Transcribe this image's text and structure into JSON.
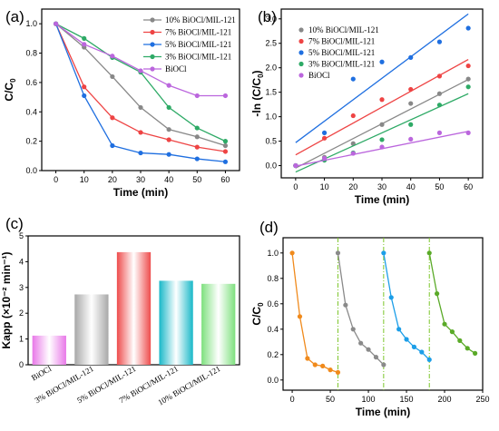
{
  "chart_data": [
    {
      "panel": "(a)",
      "type": "line",
      "xlabel": "Time (min)",
      "ylabel": "C/C0",
      "xlim": [
        -5,
        65
      ],
      "ylim": [
        0,
        1.1
      ],
      "xticks": [
        0,
        10,
        20,
        30,
        40,
        50,
        60
      ],
      "yticks": [
        0.0,
        0.2,
        0.4,
        0.6,
        0.8,
        1.0
      ],
      "ytick_labels": [
        "0.0",
        "0.2",
        "0.4",
        "0.6",
        "0.8",
        "1.0"
      ],
      "legend_position": "top-right",
      "x": [
        0,
        10,
        20,
        30,
        40,
        50,
        60
      ],
      "series": [
        {
          "name": "10% BiOCl/MIL-121",
          "color": "#888888",
          "values": [
            1.0,
            0.84,
            0.64,
            0.43,
            0.28,
            0.23,
            0.17
          ]
        },
        {
          "name": "7%  BiOCl/MIL-121",
          "color": "#ee4444",
          "values": [
            1.0,
            0.57,
            0.36,
            0.26,
            0.21,
            0.16,
            0.13
          ]
        },
        {
          "name": "5%  BiOCl/MIL-121",
          "color": "#1f6fe0",
          "values": [
            1.0,
            0.51,
            0.17,
            0.12,
            0.11,
            0.08,
            0.06
          ]
        },
        {
          "name": "3%  BiOCl/MIL-121",
          "color": "#2eaa66",
          "values": [
            1.0,
            0.9,
            0.77,
            0.67,
            0.43,
            0.29,
            0.2
          ]
        },
        {
          "name": "BiOCl",
          "color": "#bb66dd",
          "values": [
            1.0,
            0.86,
            0.78,
            0.68,
            0.58,
            0.51,
            0.51
          ]
        }
      ]
    },
    {
      "panel": "(b)",
      "type": "scatter",
      "xlabel": "Time (min)",
      "ylabel": "-ln (C/C0)",
      "xlim": [
        -5,
        65
      ],
      "ylim": [
        -0.25,
        3.2
      ],
      "xticks": [
        0,
        10,
        20,
        30,
        40,
        50,
        60
      ],
      "yticks": [
        0.0,
        0.5,
        1.0,
        1.5,
        2.0,
        2.5,
        3.0
      ],
      "ytick_labels": [
        "0.0",
        "0.5",
        "1.0",
        "1.5",
        "2.0",
        "2.5",
        "3.0"
      ],
      "legend_position": "top-left",
      "x": [
        0,
        10,
        20,
        30,
        40,
        50,
        60
      ],
      "series": [
        {
          "name": "10% BiOCl/MIL-121",
          "color": "#888888",
          "values": [
            0,
            0.17,
            0.45,
            0.84,
            1.27,
            1.47,
            1.77
          ],
          "fit": [
            -0.05,
            1.76
          ]
        },
        {
          "name": "7%  BiOCl/MIL-121",
          "color": "#ee4444",
          "values": [
            0,
            0.56,
            1.02,
            1.35,
            1.56,
            1.83,
            2.04
          ],
          "fit": [
            0.22,
            2.17
          ]
        },
        {
          "name": "5%  BiOCl/MIL-121",
          "color": "#1f6fe0",
          "values": [
            0,
            0.67,
            1.77,
            2.12,
            2.21,
            2.53,
            2.81
          ],
          "fit": [
            0.47,
            3.1
          ]
        },
        {
          "name": "3%  BiOCl/MIL-121",
          "color": "#2eaa66",
          "values": [
            0,
            0.11,
            0.26,
            0.53,
            0.84,
            1.24,
            1.61
          ],
          "fit": [
            -0.13,
            1.47
          ]
        },
        {
          "name": "BiOCl",
          "color": "#bb66dd",
          "values": [
            0,
            0.15,
            0.25,
            0.38,
            0.54,
            0.67,
            0.67
          ],
          "fit": [
            -0.01,
            0.7
          ]
        }
      ]
    },
    {
      "panel": "(c)",
      "type": "bar",
      "ylabel": "Kapp (×10⁻² min⁻¹)",
      "ylim": [
        0,
        5
      ],
      "yticks": [
        0,
        1,
        2,
        3,
        4,
        5
      ],
      "ytick_labels": [
        "0",
        "1",
        "2",
        "3",
        "4",
        "5"
      ],
      "categories": [
        "BiOCl",
        "3% BiOCl/MIL-121",
        "5% BiOCl/MIL-121",
        "7% BiOCl/MIL-121",
        "10% BiOCl/MIL-121"
      ],
      "values": [
        1.13,
        2.73,
        4.37,
        3.26,
        3.14
      ],
      "colors": [
        "#e878e8",
        "#a8a8a8",
        "#ee4c4c",
        "#18b8c8",
        "#7ee07e"
      ]
    },
    {
      "panel": "(d)",
      "type": "line",
      "xlabel": "Time (min)",
      "ylabel": "C/C0",
      "xlim": [
        -12,
        250
      ],
      "ylim": [
        -0.08,
        1.12
      ],
      "xticks": [
        0,
        50,
        100,
        150,
        200,
        250
      ],
      "yticks": [
        0.0,
        0.2,
        0.4,
        0.6,
        0.8,
        1.0
      ],
      "ytick_labels": [
        "0.0",
        "0.2",
        "0.4",
        "0.6",
        "0.8",
        "1.0"
      ],
      "vlines": [
        60,
        120,
        180
      ],
      "series": [
        {
          "color": "#f08a1c",
          "x": [
            0,
            10,
            20,
            30,
            40,
            50,
            60
          ],
          "values": [
            1.0,
            0.5,
            0.17,
            0.12,
            0.11,
            0.08,
            0.06
          ]
        },
        {
          "color": "#8a8a8a",
          "x": [
            60,
            70,
            80,
            90,
            100,
            110,
            120
          ],
          "values": [
            1.0,
            0.59,
            0.4,
            0.29,
            0.24,
            0.18,
            0.12
          ]
        },
        {
          "color": "#1c9ee8",
          "x": [
            120,
            130,
            140,
            150,
            160,
            170,
            180
          ],
          "values": [
            1.0,
            0.65,
            0.4,
            0.32,
            0.26,
            0.22,
            0.16
          ]
        },
        {
          "color": "#5aaa28",
          "x": [
            180,
            190,
            200,
            210,
            220,
            230,
            240
          ],
          "values": [
            1.0,
            0.68,
            0.44,
            0.38,
            0.31,
            0.25,
            0.21
          ]
        }
      ]
    }
  ]
}
